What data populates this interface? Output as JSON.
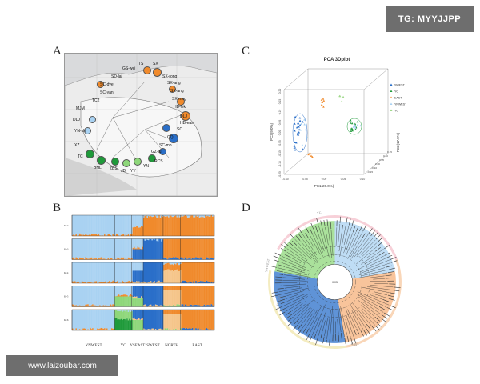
{
  "watermarks": {
    "top": "TG: MYYJJPP",
    "bottom": "www.laizoubar.com"
  },
  "panels": {
    "a": "A",
    "b": "B",
    "c": "C",
    "d": "D"
  },
  "map": {
    "labels": [
      "TS",
      "SX",
      "GS-wei",
      "SX-rong",
      "SD-lai",
      "SX-ang",
      "SC-dye",
      "SX-ang",
      "SC-yan",
      "SX-mng",
      "TC2",
      "HB-lek",
      "MJM",
      "DLJ",
      "DLJ",
      "HB-eas",
      "YN-zh",
      "SC",
      "XZ",
      "CQ",
      "SC-mb",
      "TC",
      "GZ-lu",
      "BHL",
      "ZBS",
      "JD",
      "YY",
      "YN",
      "RCS"
    ],
    "orange_dots": 9,
    "blue_dots": 8,
    "green_dots": 6
  },
  "chart_data": [
    {
      "type": "scatter",
      "title": "PCA 3Dplot",
      "xlabel": "PC1(20.0%)",
      "ylabel": "PC3(9.0%)",
      "zlabel": "PC2(17.0%)",
      "x_ticks": [
        "-0.10",
        "-0.05",
        "0.00",
        "0.05",
        "0.10"
      ],
      "y_ticks": [
        "-0.20",
        "-0.15",
        "-0.10",
        "-0.05",
        "0.00",
        "0.05",
        "0.10",
        "0.15",
        "0.20"
      ],
      "z_ticks": [
        "-0.15",
        "-0.10",
        "0.00",
        "0.05",
        "0.10",
        "0.15"
      ],
      "legend": [
        "SWEST",
        "YC",
        "EAST",
        "YNWEST",
        "YG"
      ],
      "legend_placement": "right",
      "series": [
        {
          "name": "SWEST",
          "color": "#2a6fc9"
        },
        {
          "name": "YC",
          "color": "#1f9a3a"
        },
        {
          "name": "EAST",
          "color": "#f08a2c"
        },
        {
          "name": "YNWEST",
          "color": "#a9d2f2"
        },
        {
          "name": "YG",
          "color": "#9fd98a"
        }
      ]
    },
    {
      "type": "bar",
      "title": "",
      "row_labels": [
        "K=2",
        "K=3",
        "K=4",
        "K=5",
        "K=6"
      ],
      "group_labels": [
        "YNWEST",
        "YC",
        "YSEAST",
        "SWEST",
        "NORTH",
        "EAST"
      ],
      "colors": [
        "#a9d2f2",
        "#f08a2c",
        "#2a6fc9",
        "#f5c58a",
        "#8ed77a",
        "#1f9a3a"
      ]
    },
    {
      "type": "table",
      "title": "",
      "ring_labels": [
        "YC",
        "YNWEST",
        "SWEST",
        "EAST"
      ],
      "center_label": "0.05",
      "colors": [
        "#8ed77a",
        "#a9d2f2",
        "#2a6fc9",
        "#f5b07a"
      ]
    }
  ]
}
